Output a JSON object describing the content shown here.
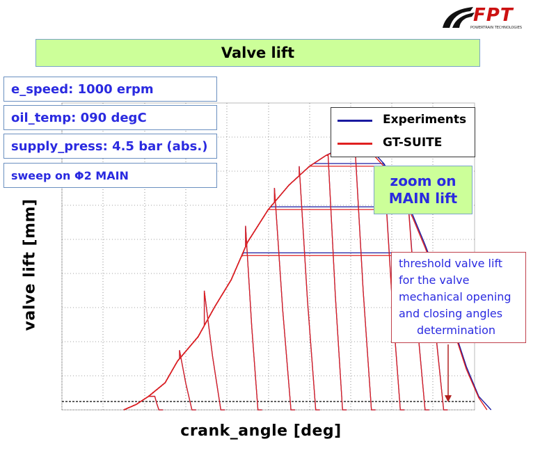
{
  "logo": {
    "brand": "FPT",
    "tagline": "POWERTRAIN TECHNOLOGIES"
  },
  "header": {
    "title": "Valve lift"
  },
  "info": {
    "speed": "e_speed: 1000 erpm",
    "oil_temp": "oil_temp: 090 degC",
    "supply_press": "supply_press: 4.5 bar (abs.)",
    "sweep": "sweep on Φ2 MAIN"
  },
  "zoom_note": {
    "line1": "zoom on",
    "line2": "MAIN lift"
  },
  "threshold_note": {
    "lines": [
      "threshold valve lift",
      "for the valve",
      "mechanical opening",
      "and closing angles",
      "determination"
    ]
  },
  "colors": {
    "experiments": "#1a1aa0",
    "gt_suite": "#e02020",
    "title_bg": "#ccff99",
    "text_blue": "#2a2ae0"
  },
  "chart_data": {
    "type": "line",
    "xlabel": "crank_angle [deg]",
    "ylabel": "valve lift [mm]",
    "xlim": [
      0,
      100
    ],
    "ylim": [
      0,
      100
    ],
    "grid": true,
    "tick_labels_shown": false,
    "legend": {
      "position": "top-right",
      "entries": [
        "Experiments",
        "GT-SUITE"
      ]
    },
    "threshold_level": 1,
    "series": [
      {
        "name": "Experiments",
        "envelope": [
          [
            15,
            0
          ],
          [
            18,
            2
          ],
          [
            21,
            5
          ],
          [
            25,
            10
          ],
          [
            28,
            18
          ],
          [
            33,
            27
          ],
          [
            37,
            38
          ],
          [
            41,
            48
          ],
          [
            45,
            62
          ],
          [
            50,
            74
          ],
          [
            55,
            83
          ],
          [
            60,
            90
          ],
          [
            64,
            94
          ],
          [
            68,
            97
          ],
          [
            71,
            98.5
          ],
          [
            73,
            98
          ],
          [
            75,
            96
          ],
          [
            78,
            91
          ],
          [
            81,
            84
          ],
          [
            85,
            72
          ],
          [
            88,
            61
          ],
          [
            92,
            45
          ],
          [
            95,
            30
          ],
          [
            98,
            16
          ],
          [
            101,
            5
          ],
          [
            104,
            0
          ]
        ],
        "closing_sweeps": [
          {
            "close_start": 22.5,
            "peak_height": 5,
            "close_end": 23.5
          },
          {
            "close_start": 28.5,
            "peak_height": 22,
            "close_end": 31.5
          },
          {
            "close_start": 34.5,
            "peak_height": 44,
            "close_end": 38.5
          },
          {
            "close_start": 44.5,
            "peak_height": 68,
            "close_end": 47.5
          },
          {
            "close_start": 51.5,
            "peak_height": 82,
            "close_end": 55.5
          },
          {
            "close_start": 57.5,
            "peak_height": 90,
            "close_end": 61.5
          },
          {
            "close_start": 64.5,
            "peak_height": 94,
            "close_end": 68
          },
          {
            "close_start": 71,
            "peak_height": 98,
            "close_end": 75
          },
          {
            "close_start": 78,
            "peak_height": 91,
            "close_end": 82
          },
          {
            "close_start": 84,
            "peak_height": 75,
            "close_end": 88
          },
          {
            "close_start": 89,
            "peak_height": 58,
            "close_end": 92.5
          }
        ]
      },
      {
        "name": "GT-SUITE",
        "envelope": [
          [
            15,
            0
          ],
          [
            18,
            2
          ],
          [
            21,
            5
          ],
          [
            25,
            10
          ],
          [
            28,
            18
          ],
          [
            33,
            27
          ],
          [
            37,
            38
          ],
          [
            41,
            48
          ],
          [
            45,
            62
          ],
          [
            50,
            74
          ],
          [
            55,
            83
          ],
          [
            60,
            90
          ],
          [
            64,
            94
          ],
          [
            68,
            96.5
          ],
          [
            71,
            97.5
          ],
          [
            73,
            97
          ],
          [
            75,
            95
          ],
          [
            78,
            90
          ],
          [
            81,
            83
          ],
          [
            85,
            71
          ],
          [
            88,
            60
          ],
          [
            92,
            44
          ],
          [
            95,
            29
          ],
          [
            98,
            15
          ],
          [
            101,
            4.5
          ],
          [
            103,
            0
          ]
        ],
        "closing_sweeps": [
          {
            "close_start": 22.5,
            "peak_height": 5,
            "close_end": 23.5
          },
          {
            "close_start": 28.5,
            "peak_height": 22,
            "close_end": 31.5
          },
          {
            "close_start": 34.5,
            "peak_height": 44,
            "close_end": 38.5
          },
          {
            "close_start": 44.5,
            "peak_height": 68,
            "close_end": 47.5
          },
          {
            "close_start": 51.5,
            "peak_height": 82,
            "close_end": 55.5
          },
          {
            "close_start": 57.5,
            "peak_height": 90,
            "close_end": 61.5
          },
          {
            "close_start": 64.5,
            "peak_height": 94,
            "close_end": 68
          },
          {
            "close_start": 71,
            "peak_height": 97.5,
            "close_end": 75
          },
          {
            "close_start": 78,
            "peak_height": 90,
            "close_end": 82
          },
          {
            "close_start": 84,
            "peak_height": 74,
            "close_end": 88
          },
          {
            "close_start": 89,
            "peak_height": 57,
            "close_end": 92.5
          }
        ]
      }
    ]
  }
}
